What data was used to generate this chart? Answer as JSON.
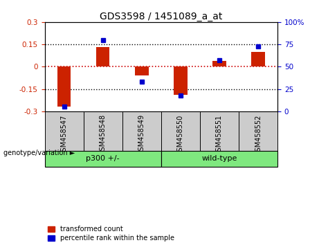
{
  "title": "GDS3598 / 1451089_a_at",
  "samples": [
    "GSM458547",
    "GSM458548",
    "GSM458549",
    "GSM458550",
    "GSM458551",
    "GSM458552"
  ],
  "red_values": [
    -0.27,
    0.13,
    -0.06,
    -0.19,
    0.04,
    0.1
  ],
  "blue_values": [
    5,
    80,
    33,
    18,
    57,
    73
  ],
  "group_ranges": [
    [
      0,
      2,
      "p300 +/-"
    ],
    [
      3,
      5,
      "wild-type"
    ]
  ],
  "group_label_prefix": "genotype/variation",
  "ylim_left": [
    -0.3,
    0.3
  ],
  "ylim_right": [
    0,
    100
  ],
  "yticks_left": [
    -0.3,
    -0.15,
    0,
    0.15,
    0.3
  ],
  "ytick_left_labels": [
    "-0.3",
    "-0.15",
    "0",
    "0.15",
    "0.3"
  ],
  "yticks_right": [
    0,
    25,
    50,
    75,
    100
  ],
  "ytick_right_labels": [
    "0",
    "25",
    "50",
    "75",
    "100%"
  ],
  "hlines_dotted": [
    -0.15,
    0.15
  ],
  "hline_zero": 0,
  "red_color": "#CC2200",
  "blue_color": "#0000CC",
  "zero_line_color": "#CC0000",
  "dotted_line_color": "#000000",
  "bar_width": 0.35,
  "blue_marker_size": 5,
  "legend_red": "transformed count",
  "legend_blue": "percentile rank within the sample",
  "background_color": "#ffffff",
  "plot_bg_color": "#ffffff",
  "sample_bg_color": "#cccccc",
  "group_bg_color": "#7FE87F"
}
